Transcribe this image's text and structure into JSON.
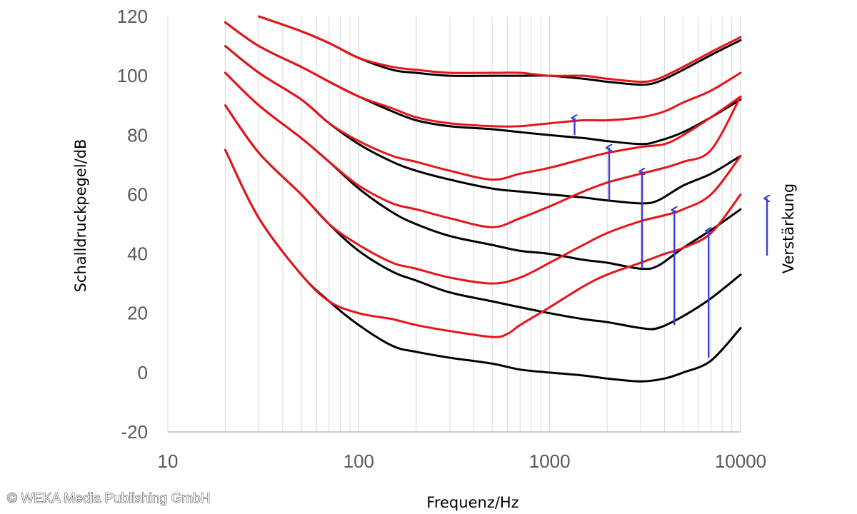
{
  "chart_data": {
    "type": "line",
    "title": "",
    "xlabel": "Frequenz/Hz",
    "ylabel": "Schalldruckpegel/dB",
    "xscale": "log",
    "xlim": [
      10,
      10000
    ],
    "ylim": [
      -20,
      120
    ],
    "x_ticks": [
      "10",
      "100",
      "1000",
      "10000"
    ],
    "y_ticks": [
      "-20",
      "0",
      "20",
      "40",
      "60",
      "80",
      "100",
      "120"
    ],
    "grid": "on (vertical minor log grid, horizontal none)",
    "legend": "none",
    "colors": {
      "black_series": "#000000",
      "red_series": "#e8141b",
      "arrows": "#3a3fd4"
    },
    "series": [
      {
        "color": "black",
        "points": [
          [
            20,
            75
          ],
          [
            30,
            52
          ],
          [
            50,
            33
          ],
          [
            70,
            24
          ],
          [
            100,
            16
          ],
          [
            150,
            9
          ],
          [
            200,
            7
          ],
          [
            300,
            5
          ],
          [
            500,
            3
          ],
          [
            700,
            1
          ],
          [
            1000,
            0
          ],
          [
            1500,
            -1
          ],
          [
            2000,
            -2
          ],
          [
            3000,
            -3
          ],
          [
            4000,
            -2
          ],
          [
            5000,
            0
          ],
          [
            7000,
            4
          ],
          [
            10000,
            15
          ]
        ]
      },
      {
        "color": "black",
        "points": [
          [
            20,
            90
          ],
          [
            30,
            74
          ],
          [
            50,
            60
          ],
          [
            70,
            50
          ],
          [
            100,
            41
          ],
          [
            150,
            34
          ],
          [
            200,
            31
          ],
          [
            300,
            27
          ],
          [
            500,
            24
          ],
          [
            700,
            22
          ],
          [
            1000,
            20
          ],
          [
            1500,
            18
          ],
          [
            2000,
            17
          ],
          [
            3000,
            15
          ],
          [
            3700,
            15
          ],
          [
            5000,
            19
          ],
          [
            7000,
            25
          ],
          [
            10000,
            33
          ]
        ]
      },
      {
        "color": "black",
        "points": [
          [
            20,
            101
          ],
          [
            30,
            90
          ],
          [
            50,
            79
          ],
          [
            70,
            71
          ],
          [
            100,
            62
          ],
          [
            150,
            54
          ],
          [
            200,
            50
          ],
          [
            300,
            46
          ],
          [
            500,
            43
          ],
          [
            700,
            41
          ],
          [
            1000,
            40
          ],
          [
            1500,
            38
          ],
          [
            2000,
            37
          ],
          [
            3000,
            35
          ],
          [
            3700,
            36
          ],
          [
            5000,
            42
          ],
          [
            7000,
            48
          ],
          [
            10000,
            55
          ]
        ]
      },
      {
        "color": "black",
        "points": [
          [
            20,
            110
          ],
          [
            30,
            101
          ],
          [
            50,
            92
          ],
          [
            70,
            84
          ],
          [
            100,
            77
          ],
          [
            150,
            71
          ],
          [
            200,
            68
          ],
          [
            300,
            65
          ],
          [
            500,
            62
          ],
          [
            700,
            61
          ],
          [
            1000,
            60
          ],
          [
            1500,
            59
          ],
          [
            2000,
            58
          ],
          [
            3000,
            57
          ],
          [
            3700,
            58
          ],
          [
            5000,
            63
          ],
          [
            7000,
            67
          ],
          [
            10000,
            73
          ]
        ]
      },
      {
        "color": "black",
        "points": [
          [
            20,
            118
          ],
          [
            30,
            110
          ],
          [
            50,
            103
          ],
          [
            70,
            98
          ],
          [
            100,
            93
          ],
          [
            150,
            88
          ],
          [
            200,
            85
          ],
          [
            300,
            83
          ],
          [
            500,
            82
          ],
          [
            700,
            81
          ],
          [
            1000,
            80
          ],
          [
            1500,
            79
          ],
          [
            2000,
            78
          ],
          [
            3000,
            77
          ],
          [
            3700,
            78
          ],
          [
            5000,
            81
          ],
          [
            7000,
            86
          ],
          [
            10000,
            92
          ]
        ]
      },
      {
        "color": "black",
        "points": [
          [
            30,
            120
          ],
          [
            50,
            115
          ],
          [
            70,
            111
          ],
          [
            100,
            106
          ],
          [
            150,
            102
          ],
          [
            200,
            101
          ],
          [
            300,
            100
          ],
          [
            500,
            100
          ],
          [
            700,
            100
          ],
          [
            1000,
            100
          ],
          [
            1500,
            99
          ],
          [
            2000,
            98
          ],
          [
            3000,
            97
          ],
          [
            3700,
            98
          ],
          [
            5000,
            102
          ],
          [
            7000,
            107
          ],
          [
            10000,
            112
          ]
        ]
      },
      {
        "color": "red",
        "points": [
          [
            20,
            75
          ],
          [
            30,
            52
          ],
          [
            50,
            33
          ],
          [
            70,
            24
          ],
          [
            100,
            20
          ],
          [
            150,
            18
          ],
          [
            200,
            16
          ],
          [
            300,
            14
          ],
          [
            500,
            12
          ],
          [
            600,
            13
          ],
          [
            700,
            16
          ],
          [
            1000,
            22
          ],
          [
            1500,
            29
          ],
          [
            2000,
            33
          ],
          [
            3000,
            37
          ],
          [
            4000,
            40
          ],
          [
            5000,
            42
          ],
          [
            7000,
            47
          ],
          [
            10000,
            60
          ]
        ]
      },
      {
        "color": "red",
        "points": [
          [
            20,
            90
          ],
          [
            30,
            74
          ],
          [
            50,
            60
          ],
          [
            70,
            50
          ],
          [
            100,
            43
          ],
          [
            150,
            37
          ],
          [
            200,
            35
          ],
          [
            300,
            32
          ],
          [
            500,
            30
          ],
          [
            700,
            32
          ],
          [
            1000,
            37
          ],
          [
            1500,
            43
          ],
          [
            2000,
            47
          ],
          [
            3000,
            51
          ],
          [
            4000,
            53
          ],
          [
            5000,
            55
          ],
          [
            7000,
            60
          ],
          [
            10000,
            73
          ]
        ]
      },
      {
        "color": "red",
        "points": [
          [
            20,
            101
          ],
          [
            30,
            90
          ],
          [
            50,
            79
          ],
          [
            70,
            71
          ],
          [
            100,
            63
          ],
          [
            150,
            57
          ],
          [
            200,
            55
          ],
          [
            300,
            52
          ],
          [
            500,
            49
          ],
          [
            700,
            52
          ],
          [
            1000,
            56
          ],
          [
            1500,
            61
          ],
          [
            2000,
            64
          ],
          [
            3000,
            67
          ],
          [
            4000,
            69
          ],
          [
            5000,
            71
          ],
          [
            7000,
            75
          ],
          [
            10000,
            93
          ]
        ]
      },
      {
        "color": "red",
        "points": [
          [
            20,
            110
          ],
          [
            30,
            101
          ],
          [
            50,
            92
          ],
          [
            70,
            84
          ],
          [
            100,
            78
          ],
          [
            150,
            73
          ],
          [
            200,
            71
          ],
          [
            300,
            68
          ],
          [
            500,
            65
          ],
          [
            700,
            67
          ],
          [
            1000,
            69
          ],
          [
            1500,
            72
          ],
          [
            2000,
            74
          ],
          [
            3000,
            76
          ],
          [
            4000,
            77
          ],
          [
            5000,
            80
          ],
          [
            7000,
            86
          ],
          [
            10000,
            93
          ]
        ]
      },
      {
        "color": "red",
        "points": [
          [
            20,
            118
          ],
          [
            30,
            110
          ],
          [
            50,
            103
          ],
          [
            70,
            98
          ],
          [
            100,
            93
          ],
          [
            150,
            89
          ],
          [
            200,
            86
          ],
          [
            300,
            84
          ],
          [
            500,
            83
          ],
          [
            700,
            83
          ],
          [
            1000,
            84
          ],
          [
            1500,
            85
          ],
          [
            2000,
            85
          ],
          [
            3000,
            86
          ],
          [
            4000,
            88
          ],
          [
            5000,
            91
          ],
          [
            7000,
            95
          ],
          [
            10000,
            101
          ]
        ]
      },
      {
        "color": "red",
        "points": [
          [
            30,
            120
          ],
          [
            50,
            115
          ],
          [
            70,
            111
          ],
          [
            100,
            106
          ],
          [
            150,
            103
          ],
          [
            200,
            102
          ],
          [
            300,
            101
          ],
          [
            500,
            101
          ],
          [
            700,
            101
          ],
          [
            1000,
            100
          ],
          [
            1500,
            100
          ],
          [
            2000,
            99
          ],
          [
            3000,
            98
          ],
          [
            3700,
            99
          ],
          [
            5000,
            103
          ],
          [
            7000,
            108
          ],
          [
            10000,
            113
          ]
        ]
      }
    ],
    "arrows": [
      {
        "x": 1350,
        "y_from": 80,
        "y_to": 86
      },
      {
        "x": 2050,
        "y_from": 58,
        "y_to": 76
      },
      {
        "x": 3050,
        "y_from": 35,
        "y_to": 68
      },
      {
        "x": 4500,
        "y_from": 16,
        "y_to": 55
      },
      {
        "x": 6800,
        "y_from": 5,
        "y_to": 48
      }
    ],
    "legend_arrow_label": "Verstärkung"
  },
  "watermark": "© WEKA Media Publishing GmbH"
}
